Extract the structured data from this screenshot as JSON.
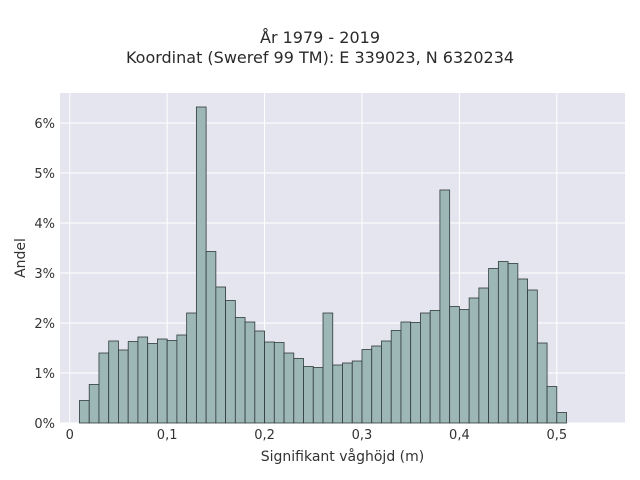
{
  "chart_data": {
    "type": "bar",
    "title_lines": [
      "År 1979 - 2019",
      "Koordinat (Sweref 99 TM): E 339023, N 6320234"
    ],
    "xlabel": "Signifikant våghöjd (m)",
    "ylabel": "Andel",
    "xlim": [
      -0.01,
      0.57
    ],
    "ylim": [
      0,
      0.066
    ],
    "x_ticks": [
      0,
      0.1,
      0.2,
      0.3,
      0.4,
      0.5
    ],
    "x_tick_labels": [
      "0",
      "0,1",
      "0,2",
      "0,3",
      "0,4",
      "0,5"
    ],
    "y_ticks": [
      0,
      0.01,
      0.02,
      0.03,
      0.04,
      0.05,
      0.06
    ],
    "y_tick_labels": [
      "0%",
      "1%",
      "2%",
      "3%",
      "4%",
      "5%",
      "6%"
    ],
    "bin_width": 0.01,
    "bin_start": 0.01,
    "values": [
      0.0045,
      0.0077,
      0.014,
      0.0164,
      0.0146,
      0.0163,
      0.0172,
      0.0159,
      0.0168,
      0.0165,
      0.0176,
      0.022,
      0.0632,
      0.0343,
      0.0272,
      0.0245,
      0.0211,
      0.0202,
      0.0184,
      0.0162,
      0.0161,
      0.014,
      0.0129,
      0.0113,
      0.0111,
      0.022,
      0.0116,
      0.012,
      0.0124,
      0.0147,
      0.0154,
      0.0164,
      0.0185,
      0.0202,
      0.0201,
      0.022,
      0.0225,
      0.0466,
      0.0233,
      0.0227,
      0.025,
      0.027,
      0.0309,
      0.0323,
      0.0319,
      0.0288,
      0.0266,
      0.016,
      0.0073,
      0.0021
    ],
    "grid": true
  },
  "colors": {
    "plot_bg": "#e5e5ef",
    "grid": "#ffffff",
    "bar_fill": "#9db6b6",
    "bar_edge": "#2f3b3b"
  }
}
